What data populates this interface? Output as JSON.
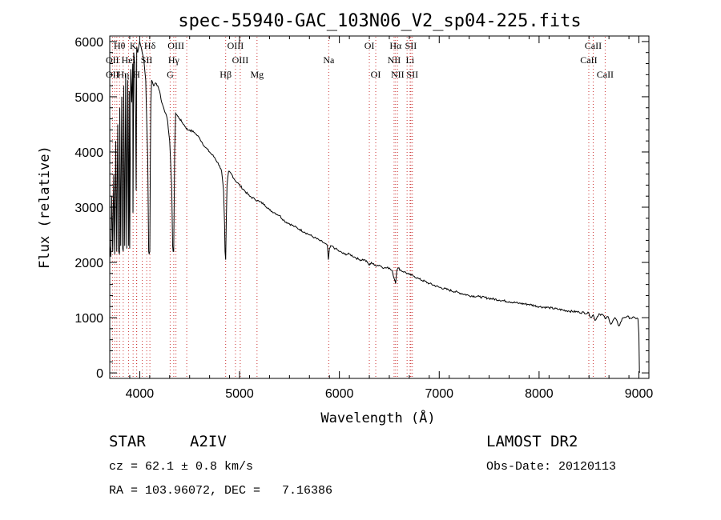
{
  "chart_data": {
    "type": "line",
    "title": "spec-55940-GAC_103N06_V2_sp04-225.fits",
    "xlabel": "Wavelength (Å)",
    "ylabel": "Flux (relative)",
    "xlim": [
      3700,
      9100
    ],
    "ylim": [
      -100,
      6100
    ],
    "xticks": [
      4000,
      5000,
      6000,
      7000,
      8000,
      9000
    ],
    "yticks": [
      0,
      1000,
      2000,
      3000,
      4000,
      5000,
      6000
    ],
    "grid": false,
    "series": [
      {
        "values_x": [
          3700,
          3710,
          3720,
          3730,
          3740,
          3750,
          3760,
          3770,
          3780,
          3790,
          3797,
          3800,
          3810,
          3820,
          3830,
          3835,
          3840,
          3850,
          3860,
          3870,
          3880,
          3889,
          3895,
          3900,
          3910,
          3920,
          3930,
          3933,
          3940,
          3950,
          3960,
          3965,
          3970,
          3980,
          3990,
          4000,
          4020,
          4040,
          4060,
          4080,
          4090,
          4095,
          4101,
          4107,
          4112,
          4120,
          4140,
          4160,
          4180,
          4200,
          4220,
          4240,
          4260,
          4280,
          4300,
          4320,
          4330,
          4335,
          4340,
          4345,
          4350,
          4360,
          4380,
          4400,
          4420,
          4440,
          4460,
          4480,
          4500,
          4550,
          4600,
          4650,
          4700,
          4750,
          4800,
          4820,
          4840,
          4850,
          4855,
          4861,
          4867,
          4875,
          4890,
          4920,
          4950,
          5000,
          5050,
          5100,
          5150,
          5200,
          5250,
          5300,
          5350,
          5400,
          5450,
          5500,
          5550,
          5600,
          5650,
          5700,
          5750,
          5800,
          5850,
          5880,
          5890,
          5900,
          5920,
          5960,
          6000,
          6050,
          6100,
          6150,
          6200,
          6250,
          6280,
          6300,
          6320,
          6350,
          6400,
          6450,
          6500,
          6530,
          6550,
          6560,
          6563,
          6566,
          6575,
          6590,
          6620,
          6650,
          6700,
          6750,
          6800,
          6900,
          7000,
          7100,
          7200,
          7300,
          7400,
          7500,
          7600,
          7700,
          7800,
          7900,
          8000,
          8100,
          8200,
          8300,
          8400,
          8498,
          8520,
          8542,
          8560,
          8600,
          8640,
          8662,
          8690,
          8720,
          8760,
          8800,
          8840,
          8880,
          8920,
          8960,
          8990,
          9000,
          9005
        ],
        "values_y": [
          2300,
          2100,
          3200,
          2200,
          3600,
          2150,
          4200,
          2200,
          4500,
          2200,
          2150,
          4800,
          2300,
          5000,
          2250,
          2200,
          5200,
          2300,
          5400,
          2250,
          5300,
          2300,
          5100,
          2250,
          5500,
          4900,
          5600,
          2900,
          5800,
          5600,
          4500,
          3300,
          5900,
          5800,
          5900,
          6000,
          5850,
          5700,
          5300,
          3900,
          2200,
          2150,
          2200,
          3900,
          4900,
          5300,
          5200,
          5250,
          5200,
          5100,
          4900,
          4800,
          4700,
          4550,
          4200,
          3400,
          2300,
          2200,
          2200,
          3000,
          4000,
          4700,
          4650,
          4600,
          4550,
          4500,
          4450,
          4400,
          4400,
          4350,
          4250,
          4100,
          4000,
          3900,
          3750,
          3650,
          3300,
          2700,
          2200,
          2050,
          2700,
          3400,
          3650,
          3600,
          3500,
          3400,
          3300,
          3200,
          3150,
          3100,
          3050,
          2950,
          2900,
          2850,
          2750,
          2700,
          2650,
          2600,
          2550,
          2500,
          2450,
          2400,
          2350,
          2300,
          2050,
          2250,
          2300,
          2250,
          2200,
          2150,
          2150,
          2100,
          2050,
          2050,
          2000,
          1950,
          2000,
          1950,
          1950,
          1900,
          1900,
          1850,
          1700,
          1650,
          1620,
          1680,
          1850,
          1900,
          1850,
          1830,
          1780,
          1750,
          1700,
          1620,
          1550,
          1500,
          1450,
          1400,
          1380,
          1350,
          1320,
          1290,
          1260,
          1240,
          1200,
          1180,
          1150,
          1120,
          1100,
          1080,
          1000,
          1050,
          950,
          1070,
          1050,
          980,
          1020,
          880,
          1000,
          850,
          1000,
          1020,
          990,
          1000,
          980,
          700,
          0
        ]
      }
    ],
    "line_markers": [
      {
        "label": "Hθ",
        "x": 3798,
        "row": 0
      },
      {
        "label": "K",
        "x": 3934,
        "row": 0
      },
      {
        "label": "Hδ",
        "x": 4102,
        "row": 0
      },
      {
        "label": "OIII",
        "x": 4363,
        "row": 0
      },
      {
        "label": "OIII",
        "x": 4959,
        "row": 0
      },
      {
        "label": "OI",
        "x": 6300,
        "row": 0
      },
      {
        "label": "Hα",
        "x": 6563,
        "row": 0
      },
      {
        "label": "SII",
        "x": 6716,
        "row": 0
      },
      {
        "label": "CaII",
        "x": 8542,
        "row": 0
      },
      {
        "label": "OII",
        "x": 3727,
        "row": 1
      },
      {
        "label": "HeI",
        "x": 3889,
        "row": 1
      },
      {
        "label": "SII",
        "x": 4070,
        "row": 1
      },
      {
        "label": "Hγ",
        "x": 4341,
        "row": 1
      },
      {
        "label": "OIII",
        "x": 5007,
        "row": 1
      },
      {
        "label": "Na",
        "x": 5893,
        "row": 1
      },
      {
        "label": "NII",
        "x": 6548,
        "row": 1
      },
      {
        "label": "Li",
        "x": 6708,
        "row": 1
      },
      {
        "label": "CaII",
        "x": 8498,
        "row": 1
      },
      {
        "label": "OII",
        "x": 3727,
        "row": 2
      },
      {
        "label": "Hη",
        "x": 3835,
        "row": 2
      },
      {
        "label": "H",
        "x": 3969,
        "row": 2
      },
      {
        "label": "G",
        "x": 4305,
        "row": 2
      },
      {
        "label": "Hβ",
        "x": 4861,
        "row": 2
      },
      {
        "label": "Mg",
        "x": 5175,
        "row": 2
      },
      {
        "label": "OI",
        "x": 6364,
        "row": 2
      },
      {
        "label": "NII",
        "x": 6583,
        "row": 2
      },
      {
        "label": "SII",
        "x": 6731,
        "row": 2
      },
      {
        "label": "CaII",
        "x": 8662,
        "row": 2
      }
    ],
    "extra_line_x": [
      3750,
      3771,
      3889,
      3970,
      4026,
      4471,
      6678,
      6548,
      6583
    ]
  },
  "info": {
    "object_class": "STAR",
    "subclass": "A2IV",
    "survey": "LAMOST DR2",
    "cz": "cz = 62.1 ± 0.8 km/s",
    "obs_date": "Obs-Date: 20120113",
    "coords": "RA = 103.96072, DEC =   7.16386"
  },
  "colors": {
    "line": "#000000",
    "marker": "#cc3333",
    "marker_dark": "#555555"
  }
}
